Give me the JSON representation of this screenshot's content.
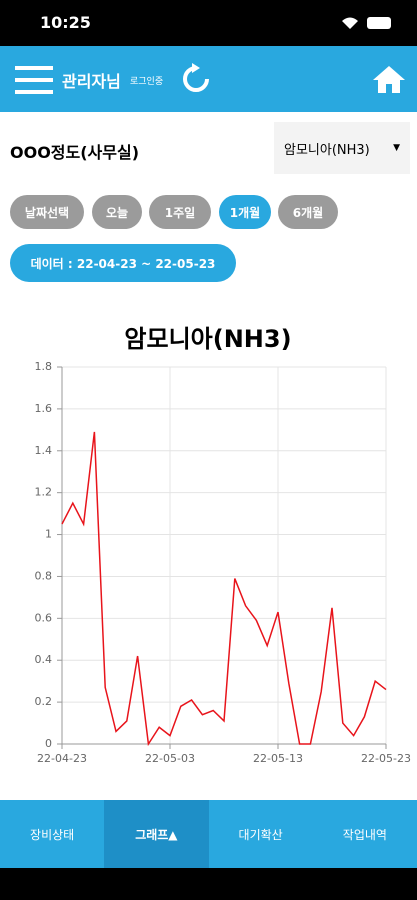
{
  "status_bar": {
    "time": "10:25"
  },
  "header": {
    "user": "관리자님",
    "status": "로그인중"
  },
  "location": "OOO정도(사무실)",
  "sensor_select": "암모니아(NH3)",
  "period_buttons": [
    "날짜선택",
    "오늘",
    "1주일",
    "1개월",
    "6개월"
  ],
  "date_range": "데이터 : 22-04-23 ~ 22-05-23",
  "chart_data": {
    "type": "line",
    "title": "암모니아(NH3)",
    "x": [
      "22-04-23",
      "22-04-24",
      "22-04-25",
      "22-04-26",
      "22-04-27",
      "22-04-28",
      "22-04-29",
      "22-04-30",
      "22-05-01",
      "22-05-02",
      "22-05-03",
      "22-05-04",
      "22-05-05",
      "22-05-06",
      "22-05-07",
      "22-05-08",
      "22-05-09",
      "22-05-10",
      "22-05-11",
      "22-05-12",
      "22-05-13",
      "22-05-14",
      "22-05-15",
      "22-05-16",
      "22-05-17",
      "22-05-18",
      "22-05-19",
      "22-05-20",
      "22-05-21",
      "22-05-22",
      "22-05-23"
    ],
    "values": [
      1.05,
      1.15,
      1.05,
      1.49,
      0.27,
      0.06,
      0.11,
      0.42,
      0,
      0.08,
      0.04,
      0.18,
      0.21,
      0.14,
      0.16,
      0.11,
      0.79,
      0.66,
      0.59,
      0.47,
      0.63,
      0.29,
      0,
      0,
      0.25,
      0.65,
      0.1,
      0.04,
      0.13,
      0.3,
      0.26
    ],
    "color": "#e8141b",
    "xlim": [
      "22-04-23",
      "22-05-23"
    ],
    "xticks": [
      "22-04-23",
      "22-05-03",
      "22-05-13",
      "22-05-23"
    ],
    "ylim": [
      0,
      1.8
    ],
    "yticks": [
      0,
      0.2,
      0.4,
      0.6,
      0.8,
      1,
      1.2,
      1.4,
      1.6,
      1.8
    ],
    "grid": true
  },
  "bottom_nav": [
    "장비상태",
    "그래프▲",
    "대기확산",
    "작업내역"
  ]
}
